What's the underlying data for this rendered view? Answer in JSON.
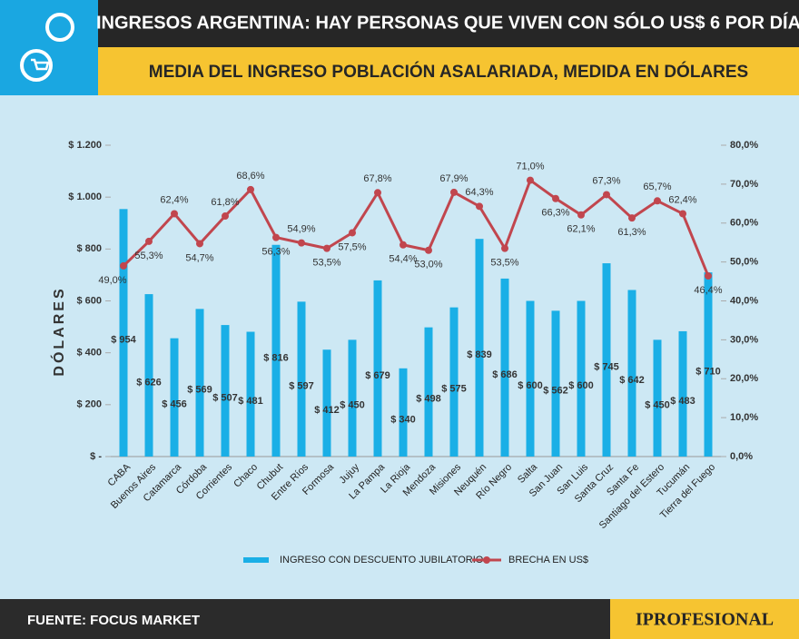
{
  "header": {
    "title": "INGRESOS ARGENTINA: HAY PERSONAS QUE VIVEN CON SÓLO US$ 6 POR DÍA",
    "subtitle": "MEDIA DEL INGRESO POBLACIÓN ASALARIADA, MEDIDA EN DÓLARES"
  },
  "chart_data": {
    "type": "combo",
    "y_label": "DÓLARES",
    "categories": [
      "CABA",
      "Buenos Aires",
      "Catamarca",
      "Córdoba",
      "Corrientes",
      "Chaco",
      "Chubut",
      "Entre Ríos",
      "Formosa",
      "Jujuy",
      "La Pampa",
      "La Rioja",
      "Mendoza",
      "Misiones",
      "Neuquén",
      "Río Negro",
      "Salta",
      "San Juan",
      "San Luis",
      "Santa Cruz",
      "Santa Fe",
      "Santiago del Estero",
      "Tucumán",
      "Tierra del Fuego"
    ],
    "series": [
      {
        "name": "INGRESO CON DESCUENTO JUBILATORIO",
        "type": "bar",
        "axis": "y",
        "color": "#1aafe6",
        "values": [
          954,
          626,
          456,
          569,
          507,
          481,
          816,
          597,
          412,
          450,
          679,
          340,
          498,
          575,
          839,
          686,
          600,
          562,
          600,
          745,
          642,
          450,
          483,
          710
        ],
        "value_labels": [
          "$ 954",
          "$ 626",
          "$ 456",
          "$ 569",
          "$ 507",
          "$ 481",
          "$ 816",
          "$ 597",
          "$ 412",
          "$ 450",
          "$ 679",
          "$ 340",
          "$ 498",
          "$ 575",
          "$ 839",
          "$ 686",
          "$ 600",
          "$ 562",
          "$ 600",
          "$ 745",
          "$ 642",
          "$ 450",
          "$ 483",
          "$ 710"
        ]
      },
      {
        "name": "BRECHA EN US$",
        "type": "line",
        "axis": "y2",
        "color": "#c1464e",
        "values": [
          49.0,
          55.3,
          62.4,
          54.7,
          61.8,
          68.6,
          56.3,
          54.9,
          53.5,
          57.5,
          67.8,
          54.4,
          53.0,
          67.9,
          64.3,
          53.5,
          71.0,
          66.3,
          62.1,
          67.3,
          61.3,
          65.7,
          62.4,
          46.4
        ],
        "value_labels": [
          "49,0%",
          "55,3%",
          "62,4%",
          "54,7%",
          "61,8%",
          "68,6%",
          "56,3%",
          "54,9%",
          "53,5%",
          "57,5%",
          "67,8%",
          "54,4%",
          "53,0%",
          "67,9%",
          "64,3%",
          "53,5%",
          "71,0%",
          "66,3%",
          "62,1%",
          "67,3%",
          "61,3%",
          "65,7%",
          "62,4%",
          "46,4%"
        ]
      }
    ],
    "ylim": [
      0,
      1200
    ],
    "yticks": [
      {
        "value": 0,
        "label": "$ -"
      },
      {
        "value": 200,
        "label": "$ 200"
      },
      {
        "value": 400,
        "label": "$ 400"
      },
      {
        "value": 600,
        "label": "$ 600"
      },
      {
        "value": 800,
        "label": "$ 800"
      },
      {
        "value": 1000,
        "label": "$ 1.000"
      },
      {
        "value": 1200,
        "label": "$ 1.200"
      }
    ],
    "y2lim": [
      0,
      80
    ],
    "y2ticks": [
      {
        "value": 0,
        "label": "0,0%"
      },
      {
        "value": 10,
        "label": "10,0%"
      },
      {
        "value": 20,
        "label": "20,0%"
      },
      {
        "value": 30,
        "label": "30,0%"
      },
      {
        "value": 40,
        "label": "40,0%"
      },
      {
        "value": 50,
        "label": "50,0%"
      },
      {
        "value": 60,
        "label": "60,0%"
      },
      {
        "value": 70,
        "label": "70,0%"
      },
      {
        "value": 80,
        "label": "80,0%"
      }
    ],
    "grid": false
  },
  "footer": {
    "source": "FUENTE: FOCUS MARKET",
    "logo": "IPROFESIONAL"
  }
}
